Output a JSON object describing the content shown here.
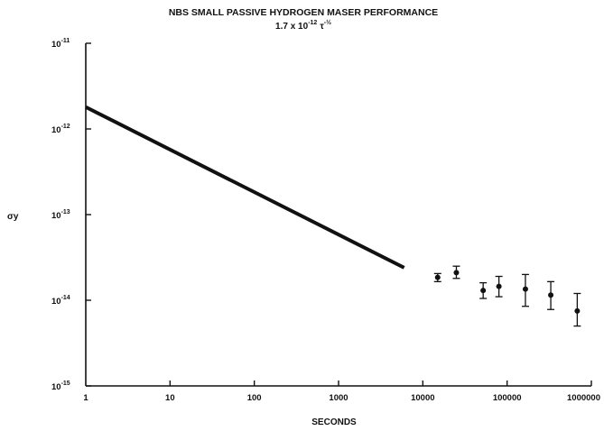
{
  "chart_data": {
    "type": "line",
    "title": "NBS SMALL PASSIVE HYDROGEN MASER PERFORMANCE",
    "subtitle": {
      "base": "1.7 x 10",
      "exponent": "-12",
      "variable": "τ",
      "variable_exponent": "-½"
    },
    "xlabel": "SECONDS",
    "ylabel": "σy",
    "x_scale": "log",
    "y_scale": "log",
    "xlim": [
      1,
      1000000
    ],
    "ylim": [
      1e-15,
      1e-11
    ],
    "grid": false,
    "x_ticks": [
      {
        "value": 1,
        "label": "1"
      },
      {
        "value": 10,
        "label": "10"
      },
      {
        "value": 100,
        "label": "100"
      },
      {
        "value": 1000,
        "label": "1000"
      },
      {
        "value": 10000,
        "label": "10000"
      },
      {
        "value": 100000,
        "label": "100000"
      },
      {
        "value": 1000000,
        "label": "1000000"
      }
    ],
    "y_ticks": [
      {
        "value": 1e-11,
        "base": "10",
        "exp": "-11"
      },
      {
        "value": 1e-12,
        "base": "10",
        "exp": "-12"
      },
      {
        "value": 1e-13,
        "base": "10",
        "exp": "-13"
      },
      {
        "value": 1e-14,
        "base": "10",
        "exp": "-14"
      },
      {
        "value": 1e-15,
        "base": "10",
        "exp": "-15"
      }
    ],
    "series": [
      {
        "type": "line",
        "color": "#111111",
        "x": [
          1,
          6000
        ],
        "y": [
          1.8e-12,
          2.4e-14
        ]
      },
      {
        "type": "scatter_errorbar",
        "color": "#111111",
        "points": [
          {
            "x": 15000,
            "y": 1.85e-14,
            "ylow": 1.65e-14,
            "yhigh": 2.05e-14
          },
          {
            "x": 25000,
            "y": 2.1e-14,
            "ylow": 1.8e-14,
            "yhigh": 2.5e-14
          },
          {
            "x": 52000,
            "y": 1.3e-14,
            "ylow": 1.05e-14,
            "yhigh": 1.6e-14
          },
          {
            "x": 80000,
            "y": 1.45e-14,
            "ylow": 1.1e-14,
            "yhigh": 1.9e-14
          },
          {
            "x": 165000,
            "y": 1.35e-14,
            "ylow": 8.5e-15,
            "yhigh": 2e-14
          },
          {
            "x": 330000,
            "y": 1.15e-14,
            "ylow": 7.8e-15,
            "yhigh": 1.65e-14
          },
          {
            "x": 680000,
            "y": 7.5e-15,
            "ylow": 5e-15,
            "yhigh": 1.2e-14
          }
        ]
      }
    ]
  }
}
